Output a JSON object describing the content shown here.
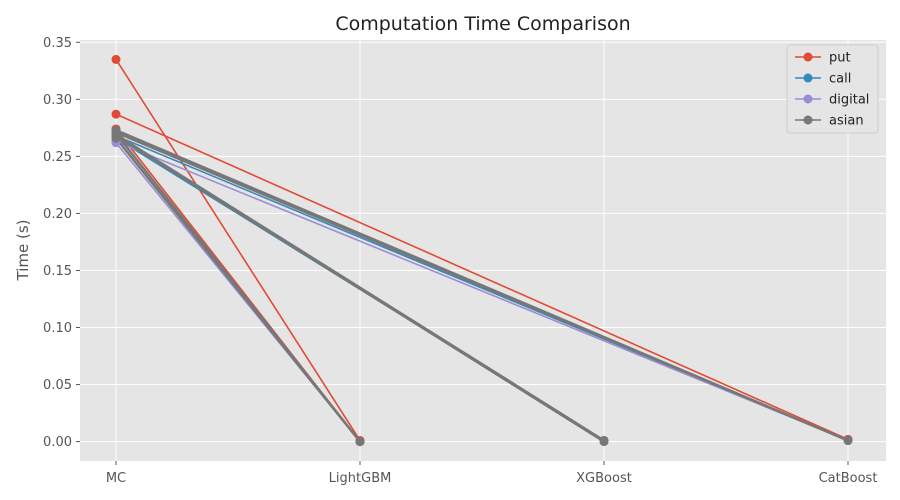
{
  "chart_data": {
    "type": "line",
    "title": "Computation Time Comparison",
    "xlabel": "",
    "ylabel": "Time (s)",
    "categories": [
      "MC",
      "LightGBM",
      "XGBoost",
      "CatBoost"
    ],
    "ylim": [
      -0.017,
      0.352
    ],
    "yticks": [
      0.0,
      0.05,
      0.1,
      0.15,
      0.2,
      0.25,
      0.3,
      0.35
    ],
    "grid": true,
    "legend_position": "top-right",
    "series_colors": {
      "put": "#E24A33",
      "call": "#348ABD",
      "digital": "#988ED5",
      "asian": "#777777"
    },
    "series": [
      {
        "name": "put",
        "lines": [
          {
            "from": "MC",
            "to": "LightGBM",
            "y0": 0.335,
            "y1": 0.001
          },
          {
            "from": "MC",
            "to": "CatBoost",
            "y0": 0.287,
            "y1": 0.002
          },
          {
            "from": "MC",
            "to": "LightGBM",
            "y0": 0.274,
            "y1": 0.0
          }
        ]
      },
      {
        "name": "call",
        "lines": [
          {
            "from": "MC",
            "to": "XGBoost",
            "y0": 0.266,
            "y1": 0.001
          },
          {
            "from": "MC",
            "to": "CatBoost",
            "y0": 0.268,
            "y1": 0.001
          }
        ]
      },
      {
        "name": "digital",
        "lines": [
          {
            "from": "MC",
            "to": "LightGBM",
            "y0": 0.262,
            "y1": 0.0
          },
          {
            "from": "MC",
            "to": "CatBoost",
            "y0": 0.263,
            "y1": 0.001
          }
        ]
      },
      {
        "name": "asian",
        "lines": [
          {
            "from": "MC",
            "to": "LightGBM",
            "y0": 0.27,
            "y1": 0.0
          },
          {
            "from": "MC",
            "to": "CatBoost",
            "y0": 0.273,
            "y1": 0.001
          },
          {
            "from": "MC",
            "to": "XGBoost",
            "y0": 0.268,
            "y1": 0.0
          },
          {
            "from": "MC",
            "to": "CatBoost",
            "y0": 0.271,
            "y1": 0.001
          },
          {
            "from": "MC",
            "to": "LightGBM",
            "y0": 0.266,
            "y1": 0.0
          },
          {
            "from": "MC",
            "to": "XGBoost",
            "y0": 0.269,
            "y1": 0.001
          }
        ]
      }
    ]
  }
}
